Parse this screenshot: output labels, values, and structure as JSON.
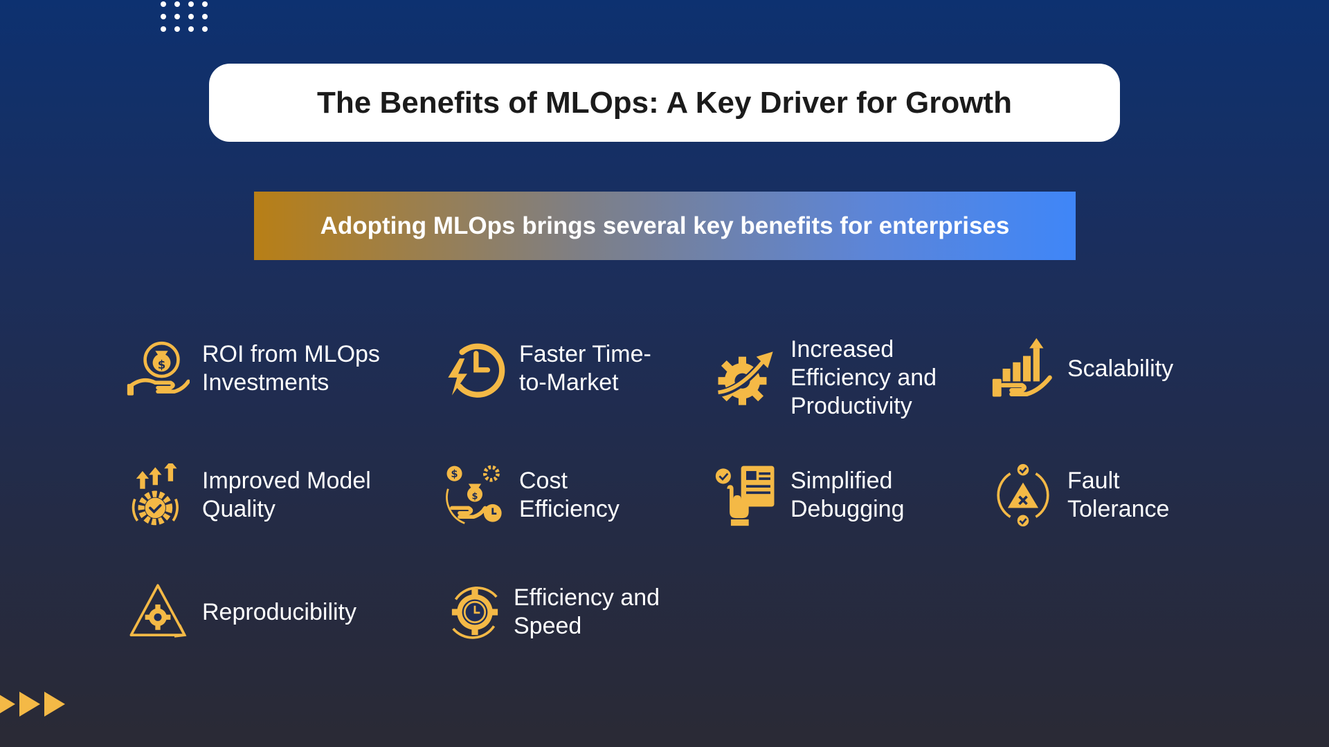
{
  "header": {
    "title": "The Benefits of MLOps: A Key Driver for Growth",
    "subtitle": "Adopting MLOps brings several key benefits for enterprises"
  },
  "colors": {
    "accent": "#f4b946",
    "background_top": "#0d3170",
    "background_bottom": "#2a2a35"
  },
  "benefits": [
    {
      "label": "ROI from MLOps Investments",
      "icon": "money-bag-hand-icon"
    },
    {
      "label": "Faster Time-to-Market",
      "icon": "clock-lightning-icon"
    },
    {
      "label": "Increased Efficiency and Productivity",
      "icon": "gear-growth-arrow-icon"
    },
    {
      "label": "Scalability",
      "icon": "hand-bar-chart-icon"
    },
    {
      "label": "Improved Model Quality",
      "icon": "gear-check-arrows-icon"
    },
    {
      "label": "Cost Efficiency",
      "icon": "money-hand-clock-icon"
    },
    {
      "label": "Simplified Debugging",
      "icon": "hand-document-check-icon"
    },
    {
      "label": "Fault Tolerance",
      "icon": "cycle-warning-check-icon"
    },
    {
      "label": "Reproducibility",
      "icon": "recycle-gear-icon"
    },
    {
      "label": "Efficiency and Speed",
      "icon": "gear-clock-icon"
    }
  ]
}
